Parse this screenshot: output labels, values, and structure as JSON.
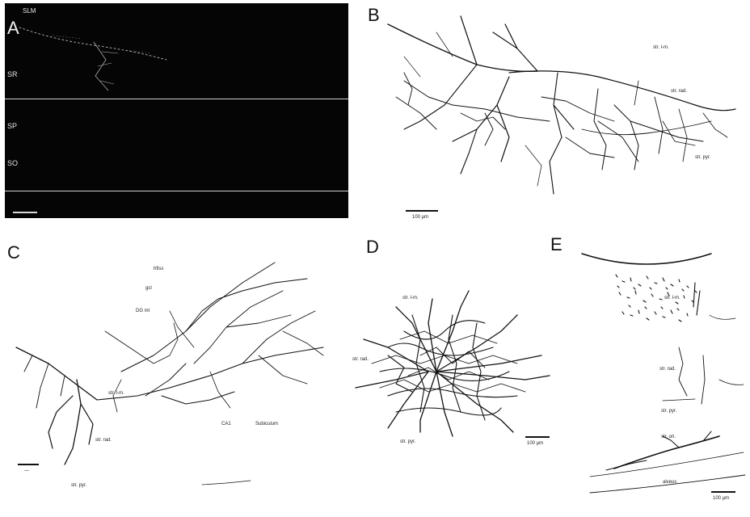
{
  "panels": {
    "a": {
      "letter": "A",
      "labels": {
        "slm": "SLM",
        "sr": "SR",
        "sp": "SP",
        "so": "SO"
      },
      "background": "#050505"
    },
    "b": {
      "letter": "B",
      "labels": {
        "str_lm": "str. l-m.",
        "str_rad": "str. rad.",
        "str_pyr": "str. pyr."
      },
      "scale": "100 µm"
    },
    "c": {
      "letter": "C",
      "labels": {
        "hfiss": "hfiss",
        "gcl": "gcl",
        "dg_ml": "DG ml",
        "str_lm": "str. l-m.",
        "ca1": "CA1",
        "subiculum": "Subiculum",
        "str_rad": "str. rad.",
        "str_pyr": "str. pyr."
      },
      "scale": "—"
    },
    "d": {
      "letter": "D",
      "labels": {
        "str_lm": "str. l-m.",
        "str_rad": "str. rad.",
        "str_pyr": "str. pyr."
      },
      "scale": "100 µm"
    },
    "e": {
      "letter": "E",
      "labels": {
        "str_lm": "str. l-m.",
        "str_rad": "str. rad.",
        "str_pyr": "str. pyr.",
        "str_ori": "str. ori.",
        "alveus": "alveus"
      },
      "scale": "100 µm"
    }
  },
  "stroke_color": "#111111"
}
